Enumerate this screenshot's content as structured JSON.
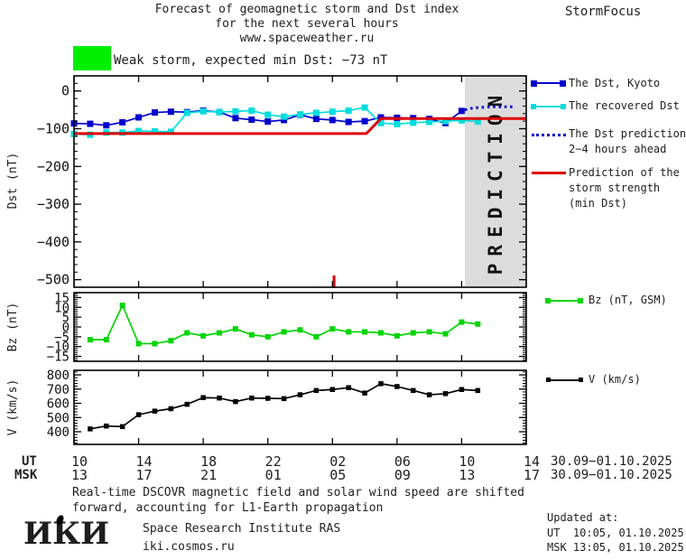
{
  "header": {
    "title_line1": "Forecast of geomagnetic storm and Dst index",
    "title_line2": "for the next several hours",
    "title_line3": "www.spaceweather.ru",
    "brand": "StormFocus"
  },
  "alert": {
    "text": "Weak storm, expected min Dst: −73 nT",
    "swatch_color": "#00ee00"
  },
  "legend": {
    "dst_kyoto": "The Dst, Kyoto",
    "recovered": "The recovered Dst",
    "prediction_line1": "The Dst prediction",
    "prediction_line2": "2−4 hours ahead",
    "storm_line1": "Prediction of the",
    "storm_line2": "storm strength",
    "storm_line3": "(min Dst)",
    "bz": "Bz (nT, GSM)",
    "v": "V (km/s)"
  },
  "colors": {
    "kyoto": "#0000cc",
    "recovered": "#00dddd",
    "prediction": "#0000cc",
    "storm": "#dd0000",
    "bz": "#00d400",
    "v": "#000000",
    "prediction_zone_fill": "#dcdcdc",
    "prediction_zone_text": "#c2c2c2"
  },
  "chart_data": [
    {
      "type": "line",
      "panel": "dst",
      "ylabel": "Dst (nT)",
      "ylim": [
        -520,
        40
      ],
      "yticks": [
        0,
        -100,
        -200,
        -300,
        -400,
        -500
      ],
      "x_axis": "hours from 30.09.2025 10:00 UT",
      "xlim": [
        0,
        28
      ],
      "xtick_hours": [
        0,
        4,
        8,
        12,
        16,
        20,
        24,
        28
      ],
      "series": [
        {
          "name": "The Dst, Kyoto",
          "color": "#0000cc",
          "style": "solid",
          "marker": "square",
          "x": [
            0,
            1,
            2,
            3,
            4,
            5,
            6,
            7,
            8,
            9,
            10,
            11,
            12,
            13,
            14,
            15,
            16,
            17,
            18,
            19,
            20,
            21,
            22,
            23,
            24
          ],
          "values": [
            -86,
            -87,
            -91,
            -83,
            -70,
            -57,
            -55,
            -56,
            -52,
            -56,
            -72,
            -76,
            -81,
            -77,
            -63,
            -74,
            -77,
            -82,
            -80,
            -70,
            -71,
            -72,
            -74,
            -85,
            -53
          ]
        },
        {
          "name": "The recovered Dst",
          "color": "#00dddd",
          "style": "solid",
          "marker": "square",
          "x": [
            0,
            1,
            2,
            3,
            4,
            5,
            6,
            7,
            8,
            9,
            10,
            11,
            12,
            13,
            14,
            15,
            16,
            17,
            18,
            19,
            20,
            21,
            22,
            23,
            24,
            25
          ],
          "values": [
            -114,
            -116,
            -110,
            -110,
            -106,
            -107,
            -108,
            -58,
            -54,
            -56,
            -54,
            -52,
            -63,
            -68,
            -62,
            -58,
            -55,
            -52,
            -44,
            -85,
            -88,
            -84,
            -82,
            -80,
            -78,
            -81
          ]
        },
        {
          "name": "The Dst prediction 2−4 hours ahead",
          "color": "#0000cc",
          "style": "dotted",
          "marker": "none",
          "x": [
            24.2,
            24.6,
            25.0,
            25.4,
            25.8,
            26.2,
            26.6,
            27.0,
            27.3
          ],
          "values": [
            -50,
            -46,
            -44,
            -43,
            -42,
            -42,
            -42,
            -42,
            -42
          ]
        },
        {
          "name": "Prediction of the storm strength (min Dst)",
          "color": "#dd0000",
          "style": "solid",
          "marker": "none",
          "width": 3,
          "x": [
            0,
            18.1,
            19,
            28
          ],
          "values": [
            -113,
            -113,
            -73,
            -73
          ]
        }
      ],
      "prediction_zone": {
        "start_hour": 24.2,
        "end_hour": 28,
        "label": "PREDICTION"
      },
      "event_tick_hour": 16.1
    },
    {
      "type": "line",
      "panel": "bz",
      "ylabel": "Bz (nT)",
      "ylim": [
        -17.5,
        17.5
      ],
      "yticks": [
        15,
        10,
        5,
        0,
        -5,
        -10,
        -15
      ],
      "series": [
        {
          "name": "Bz (nT, GSM)",
          "color": "#00d400",
          "style": "solid",
          "marker": "square",
          "x": [
            1,
            2,
            3,
            4,
            5,
            6,
            7,
            8,
            9,
            10,
            11,
            12,
            13,
            14,
            15,
            16,
            17,
            18,
            19,
            20,
            21,
            22,
            23,
            24,
            25
          ],
          "values": [
            -6.5,
            -6.5,
            11,
            -8.5,
            -8.5,
            -7,
            -3,
            -4.5,
            -3,
            -1,
            -4,
            -5,
            -2.5,
            -1.5,
            -5,
            -1,
            -2.5,
            -2.5,
            -3,
            -4.5,
            -3,
            -2.5,
            -3.5,
            2.5,
            1.5
          ]
        }
      ]
    },
    {
      "type": "line",
      "panel": "v",
      "ylabel": "V (km/s)",
      "ylim": [
        311,
        832
      ],
      "yticks": [
        800,
        700,
        600,
        500,
        400
      ],
      "series": [
        {
          "name": "V (km/s)",
          "color": "#000000",
          "style": "solid",
          "marker": "square",
          "x": [
            1,
            2,
            3,
            4,
            5,
            6,
            7,
            8,
            9,
            10,
            11,
            12,
            13,
            14,
            15,
            16,
            17,
            18,
            19,
            20,
            21,
            22,
            23,
            24,
            25
          ],
          "values": [
            420,
            440,
            436,
            520,
            545,
            562,
            593,
            640,
            637,
            612,
            637,
            635,
            633,
            660,
            690,
            697,
            710,
            672,
            738,
            718,
            690,
            660,
            668,
            697,
            690
          ]
        }
      ]
    }
  ],
  "time_axis": {
    "ut_label": "UT",
    "msk_label": "MSK",
    "ut_hours": [
      "10",
      "14",
      "18",
      "22",
      "02",
      "06",
      "10",
      "14"
    ],
    "msk_hours": [
      "13",
      "17",
      "21",
      "01",
      "05",
      "09",
      "13",
      "17"
    ],
    "ut_date": "30.09−01.10.2025",
    "msk_date": "30.09−01.10.2025"
  },
  "footnote": {
    "line1": "Real-time DSCOVR magnetic field and solar wind speed are shifted",
    "line2": "forward, accounting for L1-Earth propagation"
  },
  "footer": {
    "logo": "ИКИ",
    "institute": "Space Research Institute RAS",
    "site": "iki.cosmos.ru",
    "updated_label": "Updated at:",
    "updated_ut": "UT  10:05, 01.10.2025",
    "updated_msk": "MSK 13:05, 01.10.2025"
  }
}
